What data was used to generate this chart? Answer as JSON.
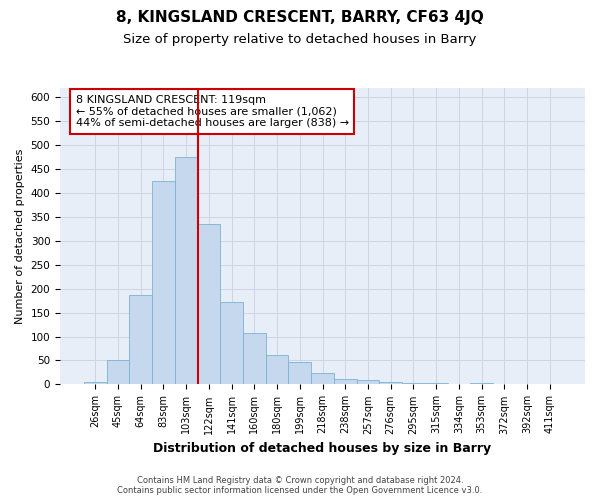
{
  "title": "8, KINGSLAND CRESCENT, BARRY, CF63 4JQ",
  "subtitle": "Size of property relative to detached houses in Barry",
  "xlabel": "Distribution of detached houses by size in Barry",
  "ylabel": "Number of detached properties",
  "bar_color": "#c5d8ed",
  "bar_edge_color": "#7ab4d4",
  "vline_color": "#cc0000",
  "categories": [
    "26sqm",
    "45sqm",
    "64sqm",
    "83sqm",
    "103sqm",
    "122sqm",
    "141sqm",
    "160sqm",
    "180sqm",
    "199sqm",
    "218sqm",
    "238sqm",
    "257sqm",
    "276sqm",
    "295sqm",
    "315sqm",
    "334sqm",
    "353sqm",
    "372sqm",
    "392sqm",
    "411sqm"
  ],
  "values": [
    5,
    52,
    186,
    425,
    475,
    335,
    172,
    108,
    62,
    46,
    24,
    11,
    9,
    5,
    4,
    2,
    1,
    2,
    1,
    1,
    1
  ],
  "annotation_line1": "8 KINGSLAND CRESCENT: 119sqm",
  "annotation_line2": "← 55% of detached houses are smaller (1,062)",
  "annotation_line3": "44% of semi-detached houses are larger (838) →",
  "grid_color": "#cdd5e5",
  "background_color": "#e8eef8",
  "ylim_max": 620,
  "yticks": [
    0,
    50,
    100,
    150,
    200,
    250,
    300,
    350,
    400,
    450,
    500,
    550,
    600
  ],
  "footer_text": "Contains HM Land Registry data © Crown copyright and database right 2024.\nContains public sector information licensed under the Open Government Licence v3.0.",
  "vline_index": 5
}
